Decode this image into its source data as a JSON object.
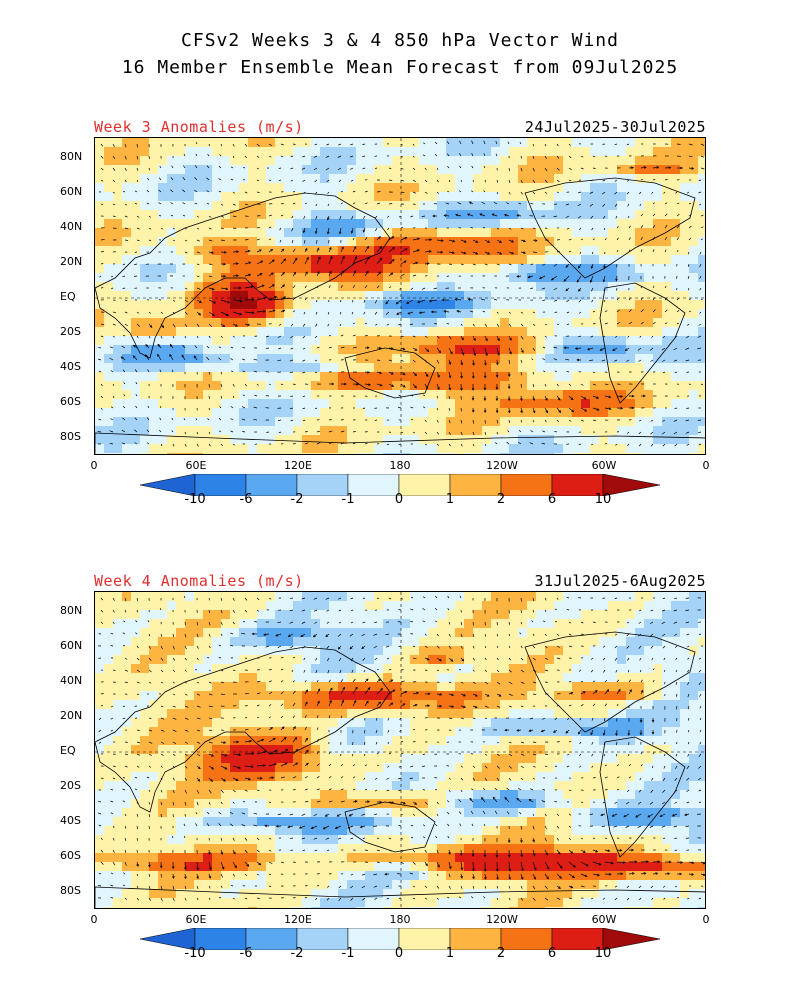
{
  "header": {
    "title_line1": "CFSv2 Weeks 3 & 4 850 hPa Vector Wind",
    "title_line2": "16 Member Ensemble Mean Forecast from 09Jul2025"
  },
  "panels": [
    {
      "label": "Week 3 Anomalies (m/s)",
      "dates": "24Jul2025-30Jul2025"
    },
    {
      "label": "Week 4 Anomalies (m/s)",
      "dates": "31Jul2025-6Aug2025"
    }
  ],
  "lat_ticks": [
    "80N",
    "60N",
    "40N",
    "20N",
    "EQ",
    "20S",
    "40S",
    "60S",
    "80S"
  ],
  "lon_ticks": [
    "0",
    "60E",
    "120E",
    "180",
    "120W",
    "60W",
    "0"
  ],
  "colorbar": {
    "labels": [
      "-10",
      "-6",
      "-2",
      "-1",
      "0",
      "1",
      "2",
      "6",
      "10"
    ],
    "colors": [
      "#1e64d2",
      "#2d83e6",
      "#5aa8f0",
      "#a5d2f7",
      "#e1f5fd",
      "#fff3aa",
      "#fdb441",
      "#f57314",
      "#dc1e14",
      "#a00a0a"
    ]
  }
}
